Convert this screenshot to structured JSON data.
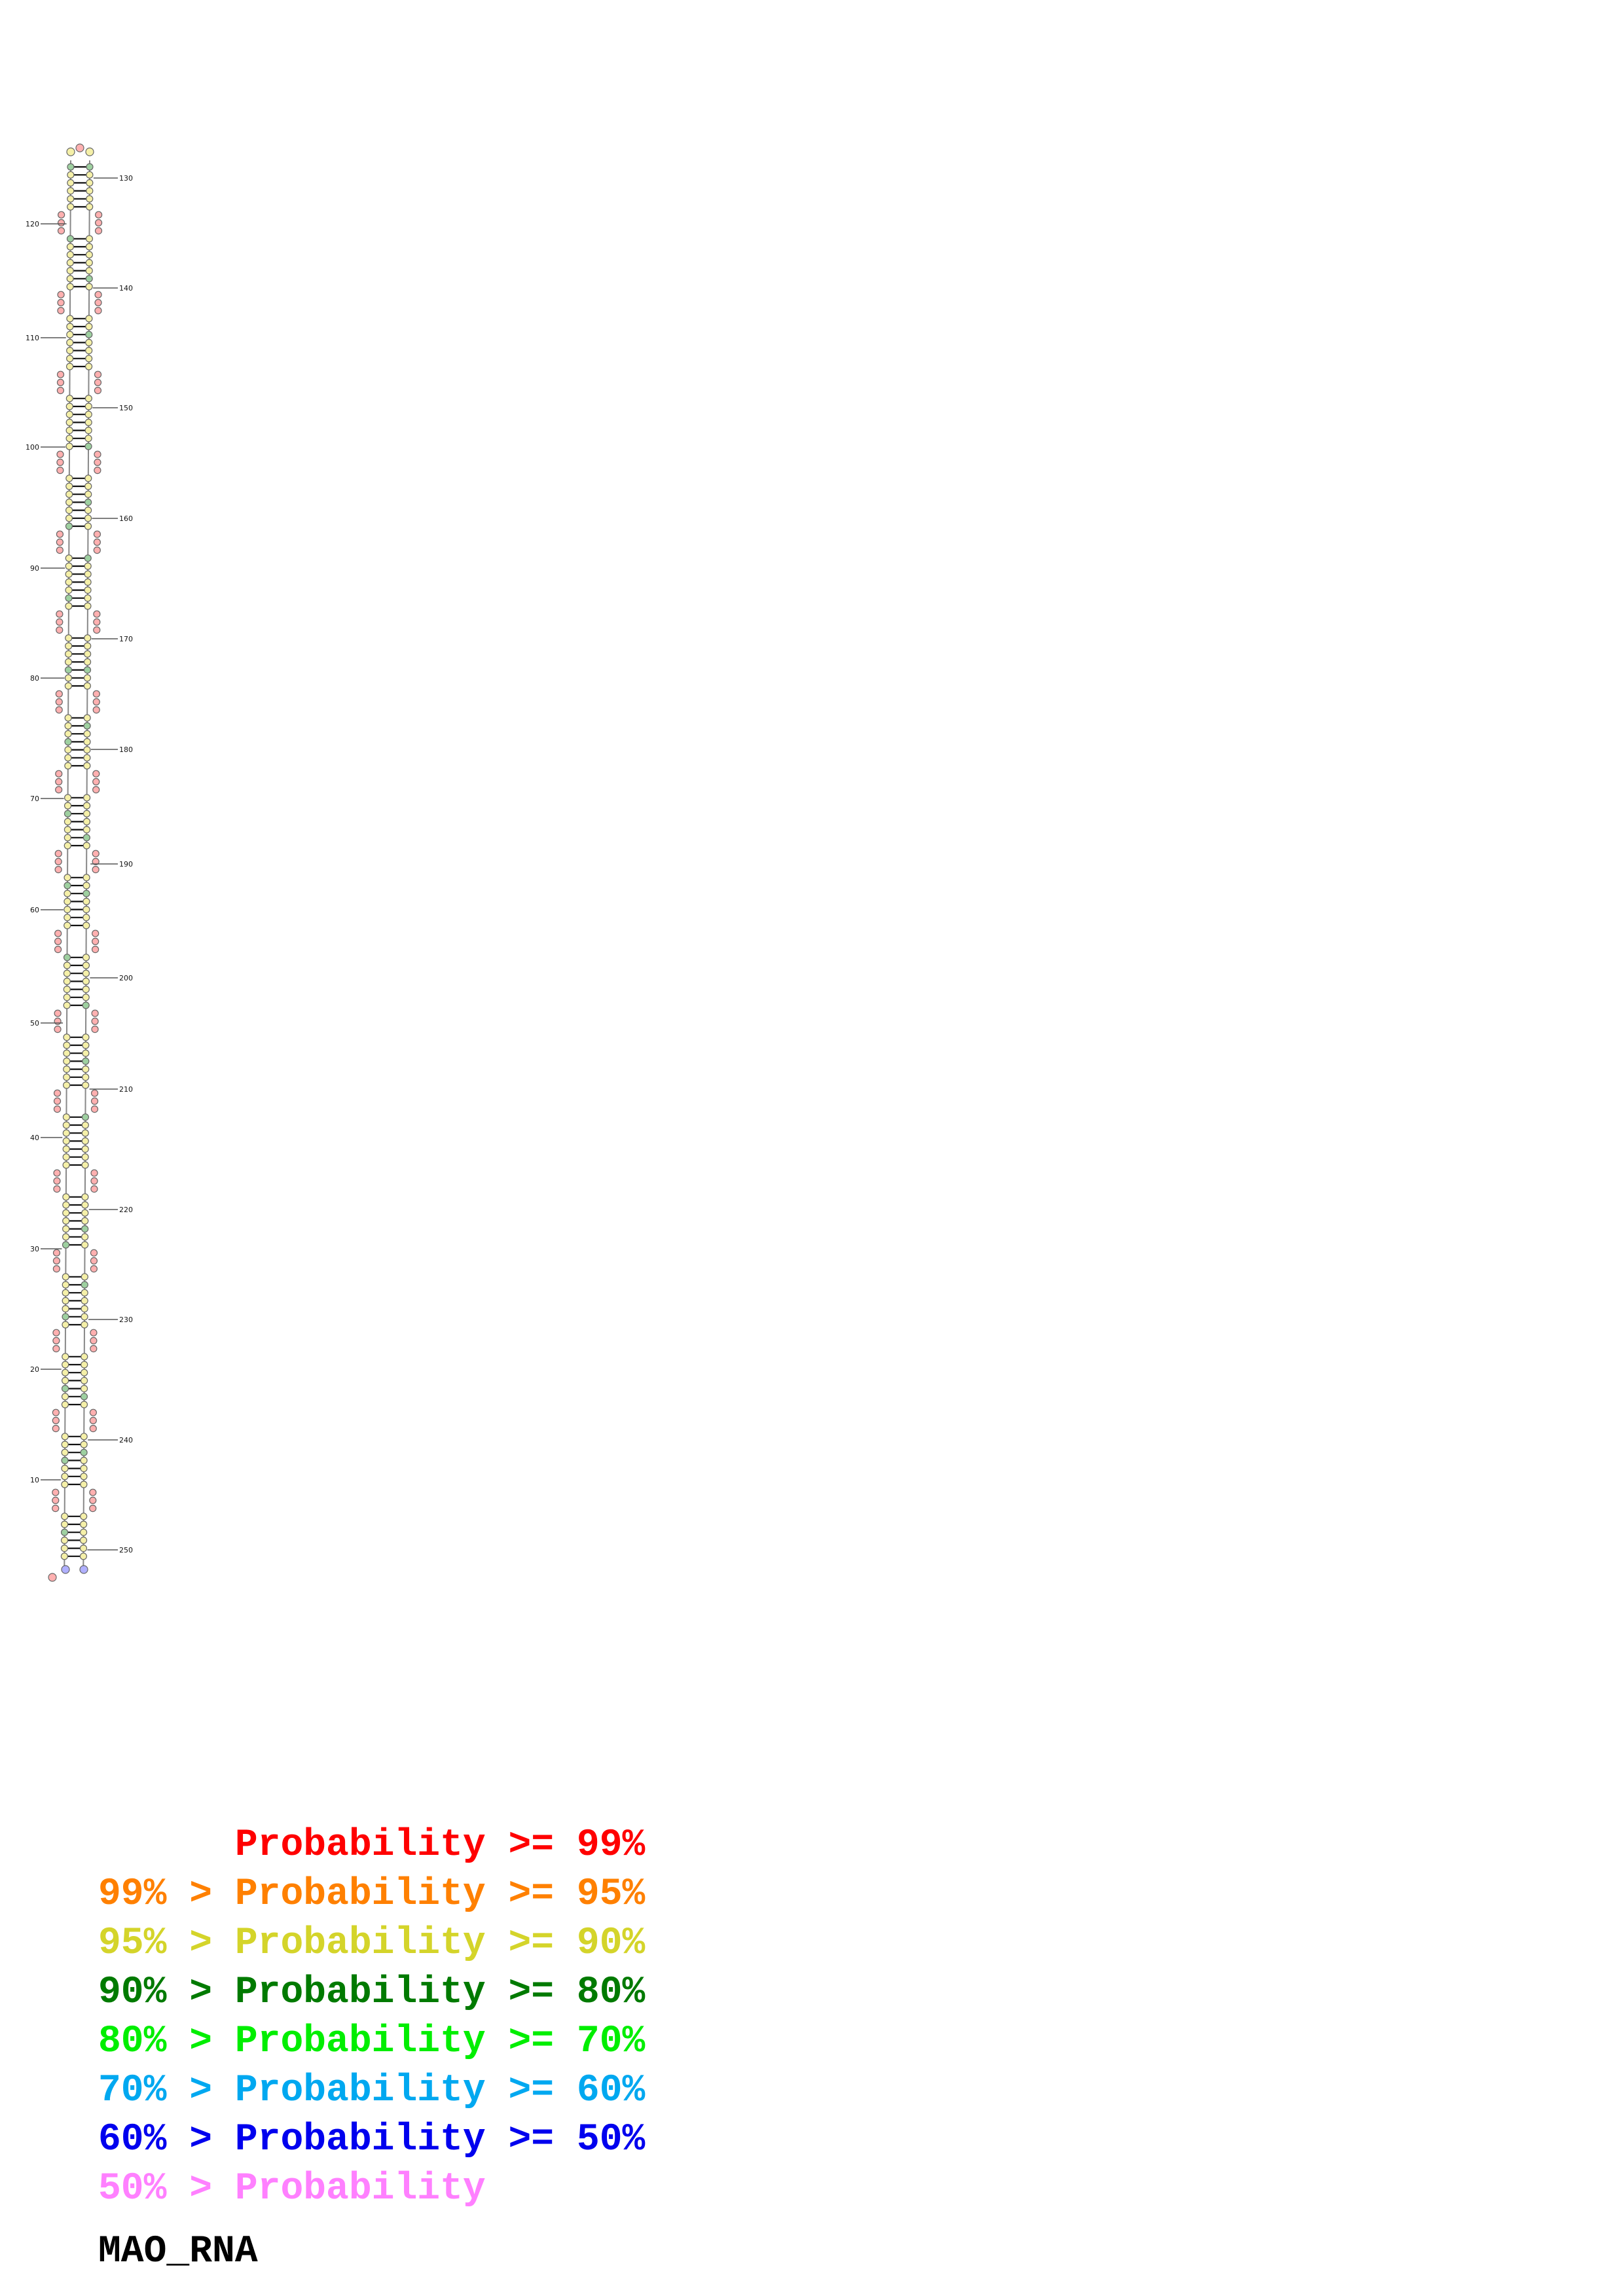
{
  "legend": [
    {
      "text": "      Probability >= 99%",
      "color": "#ff0000"
    },
    {
      "text": "99% > Probability >= 95%",
      "color": "#ff8000"
    },
    {
      "text": "95% > Probability >= 90%",
      "color": "#d4d42a"
    },
    {
      "text": "90% > Probability >= 80%",
      "color": "#007a00"
    },
    {
      "text": "80% > Probability >= 70%",
      "color": "#00ee00"
    },
    {
      "text": "70% > Probability >= 60%",
      "color": "#00a8f0"
    },
    {
      "text": "60% > Probability >= 50%",
      "color": "#0000ee"
    },
    {
      "text": "50% > Probability",
      "color": "#ff80ff"
    }
  ],
  "sequence_name": "MAO_RNA",
  "structure": {
    "left_labels": [
      "120",
      "110",
      "100",
      "90",
      "80",
      "70",
      "60",
      "50",
      "40",
      "30",
      "20",
      "10"
    ],
    "right_labels": [
      "130",
      "140",
      "150",
      "160",
      "170",
      "180",
      "190",
      "200",
      "210",
      "220",
      "230",
      "240",
      "250"
    ],
    "nucleotide_colors": {
      "paired": "#f5f0a8",
      "paired_medium": "#9ed0a0",
      "loop": "#ffb0b0",
      "terminal": "#b0b0ff"
    }
  }
}
